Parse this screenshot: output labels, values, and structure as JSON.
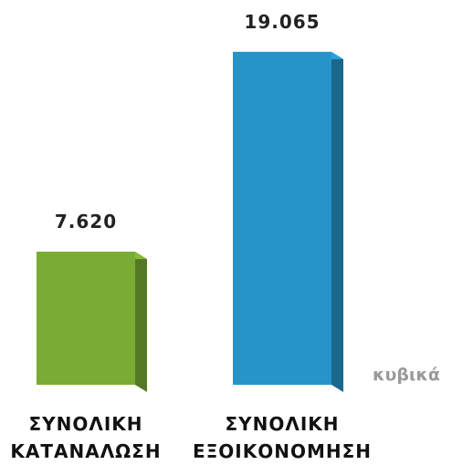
{
  "chart_data": {
    "type": "bar3d",
    "categories": [
      "ΣΥΝΟΛΙΚΗ ΚΑΤΑΝΑΛΩΣΗ",
      "ΣΥΝΟΛΙΚΗ ΕΞΟΙΚΟΝΟΜΗΣΗ"
    ],
    "values": [
      7620,
      19065
    ],
    "value_labels": [
      "7.620",
      "19.065"
    ],
    "colors": [
      "#7aab35",
      "#2794c9"
    ],
    "annotation": "κυβικά"
  }
}
